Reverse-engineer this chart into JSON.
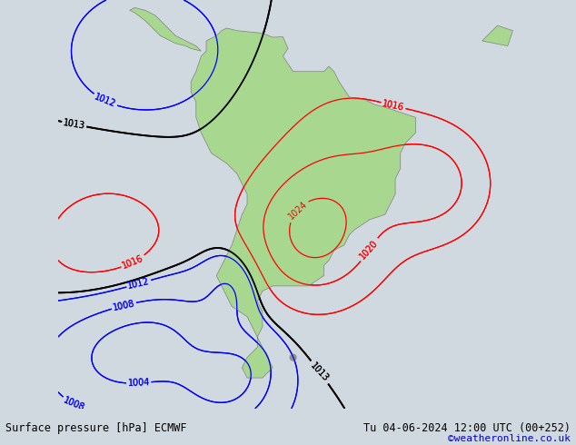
{
  "title_left": "Surface pressure [hPa] ECMWF",
  "title_right": "Tu 04-06-2024 12:00 UTC (00+252)",
  "copyright": "©weatheronline.co.uk",
  "bg_color": "#d0d8e0",
  "land_color": "#a8d890",
  "border_color": "#808080",
  "bottom_bar_color": "#c8c8c8",
  "text_color_left": "#000000",
  "text_color_right": "#000000",
  "text_color_copy": "#0000cc",
  "figsize": [
    6.34,
    4.9
  ],
  "dpi": 100,
  "label_fontsize": 7,
  "bottom_bar_height": 0.082
}
